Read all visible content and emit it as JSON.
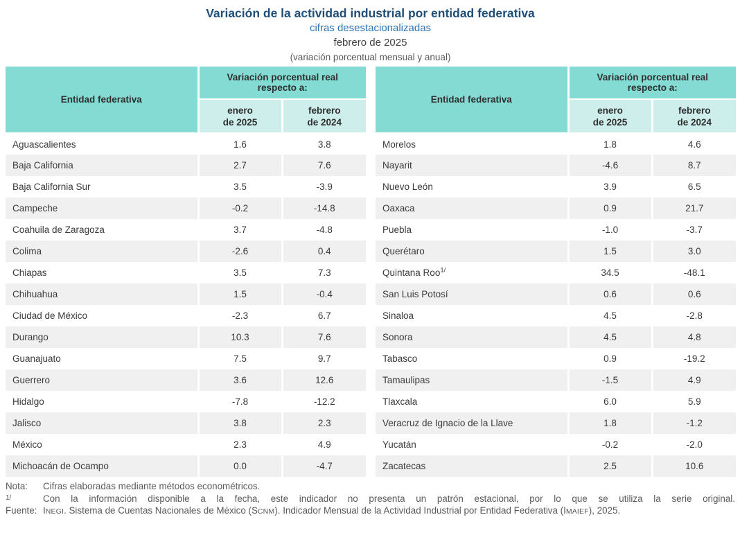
{
  "page": {
    "title": "Variación de la actividad industrial por entidad federativa",
    "subtitle1": "cifras desestacionalizadas",
    "subtitle2": "febrero de 2025",
    "subtitle3": "(variación porcentual mensual y anual)"
  },
  "colors": {
    "header_teal": "#84DBD4",
    "header_light_teal": "#CDEEEB",
    "row_alternate_gray": "#F0F0F0",
    "title_blue": "#1F4E79",
    "subtitle_blue": "#2E74B5",
    "text_gray": "#595959"
  },
  "table_header": {
    "entity": "Entidad federativa",
    "variation": "Variación porcentual real\nrespecto a:",
    "col_month1": "enero\nde 2025",
    "col_month2": "febrero\nde 2024"
  },
  "tables": [
    {
      "rows": [
        {
          "entity": "Aguascalientes",
          "enero": "1.6",
          "febrero": "3.8"
        },
        {
          "entity": "Baja California",
          "enero": "2.7",
          "febrero": "7.6"
        },
        {
          "entity": "Baja California Sur",
          "enero": "3.5",
          "febrero": "-3.9"
        },
        {
          "entity": "Campeche",
          "enero": "-0.2",
          "febrero": "-14.8"
        },
        {
          "entity": "Coahuila de Zaragoza",
          "enero": "3.7",
          "febrero": "-4.8"
        },
        {
          "entity": "Colima",
          "enero": "-2.6",
          "febrero": "0.4"
        },
        {
          "entity": "Chiapas",
          "enero": "3.5",
          "febrero": "7.3"
        },
        {
          "entity": "Chihuahua",
          "enero": "1.5",
          "febrero": "-0.4"
        },
        {
          "entity": "Ciudad de México",
          "enero": "-2.3",
          "febrero": "6.7"
        },
        {
          "entity": "Durango",
          "enero": "10.3",
          "febrero": "7.6"
        },
        {
          "entity": "Guanajuato",
          "enero": "7.5",
          "febrero": "9.7"
        },
        {
          "entity": "Guerrero",
          "enero": "3.6",
          "febrero": "12.6"
        },
        {
          "entity": "Hidalgo",
          "enero": "-7.8",
          "febrero": "-12.2"
        },
        {
          "entity": "Jalisco",
          "enero": "3.8",
          "febrero": "2.3"
        },
        {
          "entity": "México",
          "enero": "2.3",
          "febrero": "4.9"
        },
        {
          "entity": "Michoacán de Ocampo",
          "enero": "0.0",
          "febrero": "-4.7"
        }
      ]
    },
    {
      "rows": [
        {
          "entity": "Morelos",
          "enero": "1.8",
          "febrero": "4.6"
        },
        {
          "entity": "Nayarit",
          "enero": "-4.6",
          "febrero": "8.7"
        },
        {
          "entity": "Nuevo León",
          "enero": "3.9",
          "febrero": "6.5"
        },
        {
          "entity": "Oaxaca",
          "enero": "0.9",
          "febrero": "21.7"
        },
        {
          "entity": "Puebla",
          "enero": "-1.0",
          "febrero": "-3.7"
        },
        {
          "entity": "Querétaro",
          "enero": "1.5",
          "febrero": "3.0"
        },
        {
          "entity": "Quintana Roo",
          "sup": "1/",
          "enero": "34.5",
          "febrero": "-48.1"
        },
        {
          "entity": "San Luis Potosí",
          "enero": "0.6",
          "febrero": "0.6"
        },
        {
          "entity": "Sinaloa",
          "enero": "4.5",
          "febrero": "-2.8"
        },
        {
          "entity": "Sonora",
          "enero": "4.5",
          "febrero": "4.8"
        },
        {
          "entity": "Tabasco",
          "enero": "0.9",
          "febrero": "-19.2"
        },
        {
          "entity": "Tamaulipas",
          "enero": "-1.5",
          "febrero": "4.9"
        },
        {
          "entity": "Tlaxcala",
          "enero": "6.0",
          "febrero": "5.9"
        },
        {
          "entity": "Veracruz de Ignacio de la Llave",
          "enero": "1.8",
          "febrero": "-1.2"
        },
        {
          "entity": "Yucatán",
          "enero": "-0.2",
          "febrero": "-2.0"
        },
        {
          "entity": "Zacatecas",
          "enero": "2.5",
          "febrero": "10.6"
        }
      ]
    }
  ],
  "footer": {
    "nota_label": "Nota:",
    "nota_text": "Cifras elaboradas mediante métodos econométricos.",
    "note1_label": "1/",
    "note1_text": "Con la información disponible a la fecha, este indicador no presenta un patrón estacional, por lo que se utiliza la serie original.",
    "fuente_label": "Fuente:",
    "fuente_parts": [
      {
        "t": "INEGI",
        "sc": true
      },
      {
        "t": ". Sistema de Cuentas Nacionales de México (",
        "sc": false
      },
      {
        "t": "SCNM",
        "sc": true
      },
      {
        "t": "). Indicador Mensual de la Actividad Industrial por Entidad Federativa (",
        "sc": false
      },
      {
        "t": "IMAIEF",
        "sc": true
      },
      {
        "t": "), 2025.",
        "sc": false
      }
    ]
  }
}
